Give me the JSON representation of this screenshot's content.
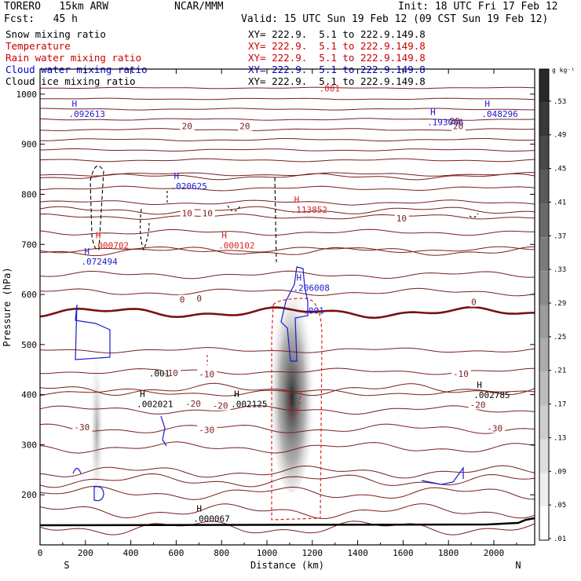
{
  "header": {
    "model": "TORERO   15km ARW",
    "org": "NCAR/MMM",
    "init": "Init: 18 UTC Fri 17 Feb 12",
    "fcst": "Fcst:   45 h",
    "valid": "Valid: 15 UTC Sun 19 Feb 12 (09 CST Sun 19 Feb 12)"
  },
  "legend": [
    {
      "name": "Snow mixing ratio",
      "xy": "XY= 222.9.  5.1 to 222.9.149.8",
      "color": "#000000"
    },
    {
      "name": "Temperature",
      "xy": "XY= 222.9.  5.1 to 222.9.149.8",
      "color": "#cc0000"
    },
    {
      "name": "Rain water mixing ratio",
      "xy": "XY= 222.9.  5.1 to 222.9.149.8",
      "color": "#cc0000"
    },
    {
      "name": "Cloud water mixing ratio",
      "xy": "XY= 222.9.  5.1 to 222.9.149.8",
      "color": "#0000cc"
    },
    {
      "name": "Cloud ice mixing ratio",
      "xy": "XY= 222.9.  5.1 to 222.9.149.8",
      "color": "#000000"
    }
  ],
  "colors": {
    "temperature": "#7a1e1e",
    "rain": "#dd2222",
    "cloud_water": "#1a1ad0",
    "ice": "#000000",
    "zero_line": "#7a1010"
  },
  "chart_data": {
    "type": "contour cross-section",
    "xlabel": "Distance (km)",
    "ylabel": "Pressure (hPa)",
    "xlim": [
      0,
      2180
    ],
    "ylim": [
      1050,
      100
    ],
    "x_ticks": [
      0,
      200,
      400,
      600,
      800,
      1000,
      1200,
      1400,
      1600,
      1800,
      2000
    ],
    "y_ticks": [
      200,
      300,
      400,
      500,
      600,
      700,
      800,
      900,
      1000
    ],
    "direction_labels": {
      "left": "S",
      "right": "N"
    },
    "colorbar": {
      "unit": "g kg⁻¹",
      "ticks": [
        ".53",
        ".49",
        ".45",
        ".41",
        ".37",
        ".33",
        ".29",
        ".25",
        ".21",
        ".17",
        ".13",
        ".09",
        ".05",
        ".01"
      ]
    },
    "temperature_contours": [
      {
        "value": "-30",
        "labels": [
          {
            "x": 150,
            "p": 335
          },
          {
            "x": 700,
            "p": 330
          },
          {
            "x": 1970,
            "p": 333
          }
        ]
      },
      {
        "value": "-20",
        "labels": [
          {
            "x": 640,
            "p": 382
          },
          {
            "x": 760,
            "p": 378
          },
          {
            "x": 1895,
            "p": 380
          }
        ]
      },
      {
        "value": "-10",
        "labels": [
          {
            "x": 540,
            "p": 443
          },
          {
            "x": 700,
            "p": 441
          },
          {
            "x": 1820,
            "p": 442
          }
        ]
      },
      {
        "value": "0",
        "labels": [
          {
            "x": 615,
            "p": 590
          },
          {
            "x": 690,
            "p": 592
          },
          {
            "x": 1900,
            "p": 585
          }
        ],
        "bold": true
      },
      {
        "value": "10",
        "labels": [
          {
            "x": 625,
            "p": 762
          },
          {
            "x": 715,
            "p": 762
          },
          {
            "x": 1570,
            "p": 752
          }
        ]
      },
      {
        "value": "20",
        "labels": [
          {
            "x": 625,
            "p": 936
          },
          {
            "x": 880,
            "p": 936
          },
          {
            "x": 1820,
            "p": 936
          }
        ]
      }
    ],
    "maxima": {
      "cloud_ice": [
        {
          "value": ".000067",
          "x": 690,
          "p": 146
        }
      ],
      "snow": [
        {
          "value": ".002021",
          "x": 440,
          "p": 375
        },
        {
          "value": ".002125",
          "x": 855,
          "p": 375
        },
        {
          "value": ".002785",
          "x": 1925,
          "p": 393
        }
      ],
      "rain": [
        {
          "value": ".000702",
          "x": 245,
          "p": 692
        },
        {
          "value": ".000102",
          "x": 800,
          "p": 692
        },
        {
          "value": ".113852",
          "x": 1120,
          "p": 763
        }
      ],
      "cloud_water": [
        {
          "value": ".072494",
          "x": 195,
          "p": 660
        },
        {
          "value": ".206008",
          "x": 1130,
          "p": 607
        },
        {
          "value": ".020625",
          "x": 590,
          "p": 810
        },
        {
          "value": ".092613",
          "x": 140,
          "p": 954
        },
        {
          "value": ".193006",
          "x": 1720,
          "p": 938
        },
        {
          "value": ".048296",
          "x": 1960,
          "p": 954
        }
      ]
    },
    "contour_value_labels": [
      {
        "value": ".001",
        "x": 480,
        "p": 436,
        "color": "#000000"
      },
      {
        "value": ".001",
        "x": 1160,
        "p": 562,
        "color": "#1a1ad0"
      },
      {
        "value": ".001",
        "x": 1230,
        "p": 1005,
        "color": "#dd2222"
      },
      {
        "value": "20",
        "x": 1805,
        "p": 940,
        "color": "#7a1e1e"
      }
    ]
  }
}
